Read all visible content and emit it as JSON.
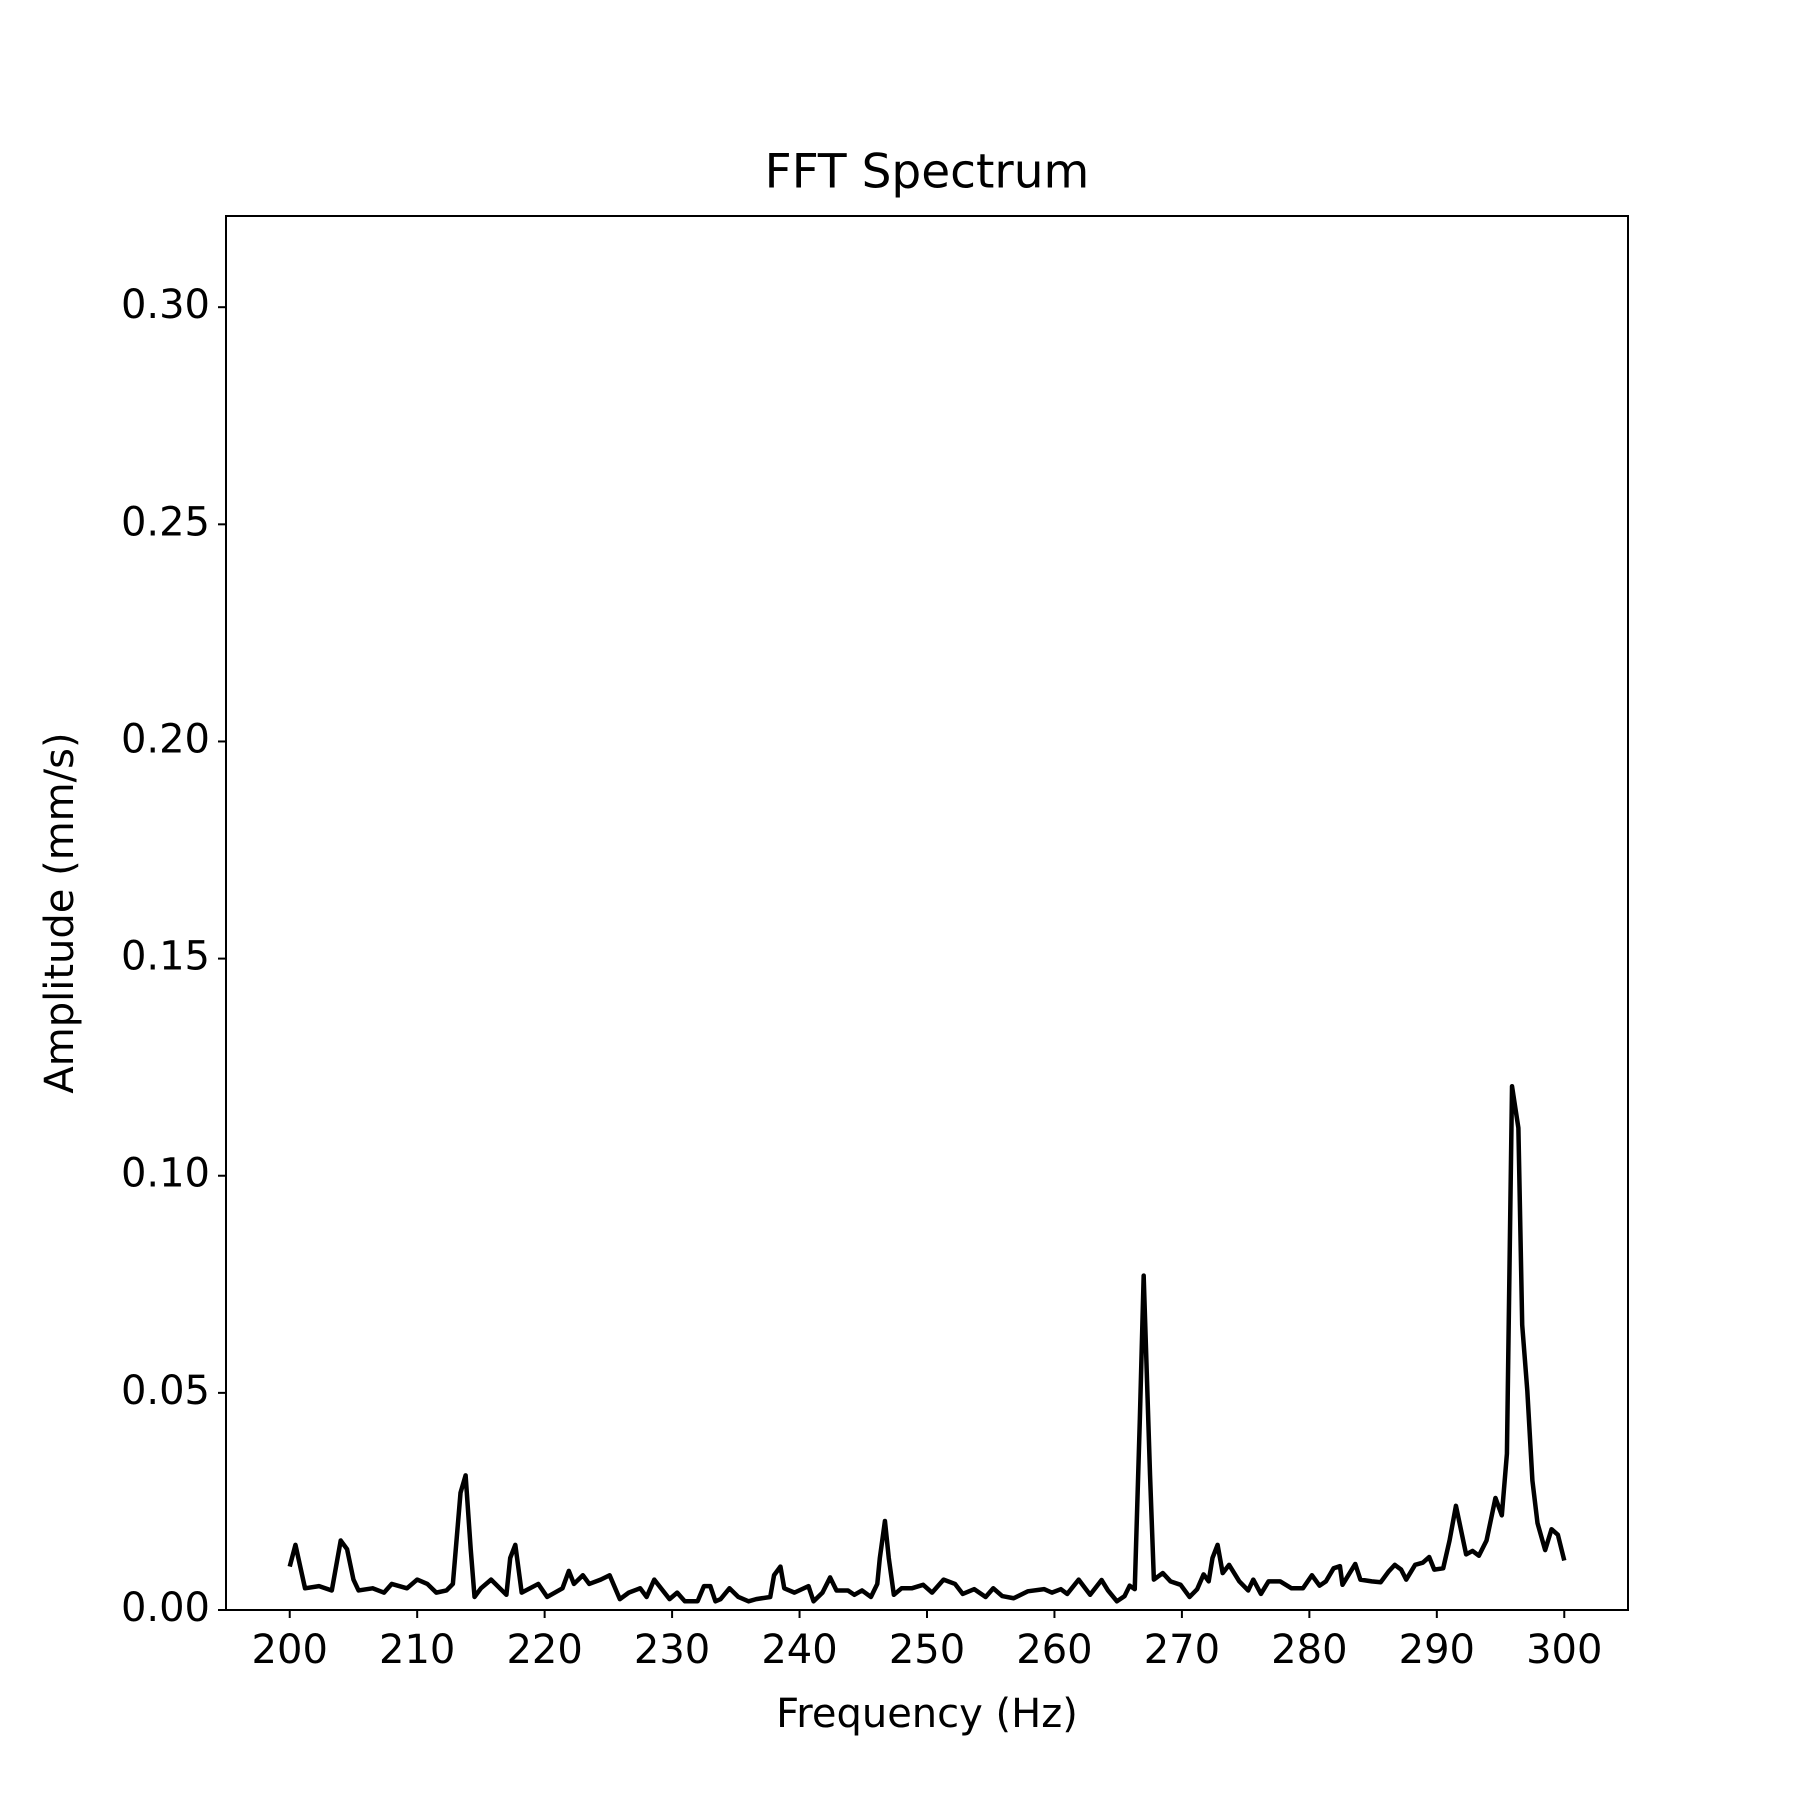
{
  "chart_data": {
    "type": "line",
    "title": "FFT Spectrum",
    "xlabel": "Frequency (Hz)",
    "ylabel": "Amplitude (mm/s)",
    "color": "#000000",
    "x": [
      200,
      200.45,
      201.2,
      202.3,
      203.3,
      204,
      204.5,
      205,
      205.4,
      206.5,
      207.4,
      208,
      209.2,
      210,
      210.8,
      211.5,
      212.3,
      212.8,
      213.4,
      213.8,
      214.2,
      214.5,
      215,
      215.8,
      217,
      217.3,
      217.7,
      218.2,
      219.5,
      220.2,
      221.4,
      221.9,
      222.3,
      223,
      223.5,
      224.4,
      225.1,
      225.9,
      226.6,
      227.5,
      228,
      228.6,
      229.8,
      230.4,
      231,
      232,
      232.5,
      233,
      233.4,
      233.8,
      234.5,
      235.2,
      236,
      236.6,
      237.7,
      238,
      238.5,
      238.8,
      239.6,
      240.7,
      241.1,
      241.8,
      242.4,
      242.9,
      243.8,
      244.3,
      244.9,
      245.6,
      246.1,
      246.3,
      246.7,
      247,
      247.4,
      248,
      248.8,
      249.7,
      250.4,
      251.3,
      252.2,
      252.8,
      253.7,
      254.6,
      255.2,
      255.9,
      256.8,
      257.9,
      259.2,
      259.8,
      260.5,
      261,
      261.9,
      262.8,
      263.7,
      264.2,
      264.9,
      265.5,
      265.9,
      266.3,
      266.7,
      267,
      267.5,
      267.8,
      268.5,
      269.1,
      269.9,
      270.6,
      271.2,
      271.7,
      272.1,
      272.4,
      272.8,
      273.2,
      273.7,
      274.5,
      275.2,
      275.6,
      276.2,
      276.8,
      277.7,
      278.6,
      279.5,
      280.2,
      280.8,
      281.3,
      281.9,
      282.4,
      282.6,
      283.6,
      284,
      284.9,
      285.6,
      286.2,
      286.7,
      287.2,
      287.6,
      288.3,
      288.9,
      289.4,
      289.8,
      290.5,
      291,
      291.5,
      292.3,
      292.8,
      293.3,
      293.9,
      294.6,
      295.1,
      295.5,
      295.9,
      296.4,
      296.7,
      297.1,
      297.5,
      297.9,
      298.5,
      299,
      299.5,
      300
    ],
    "values": [
      0.01,
      0.015,
      0.005,
      0.0055,
      0.0045,
      0.016,
      0.014,
      0.007,
      0.0045,
      0.005,
      0.004,
      0.006,
      0.005,
      0.007,
      0.006,
      0.004,
      0.0045,
      0.006,
      0.027,
      0.031,
      0.014,
      0.003,
      0.005,
      0.007,
      0.0035,
      0.012,
      0.015,
      0.004,
      0.006,
      0.003,
      0.005,
      0.009,
      0.006,
      0.008,
      0.006,
      0.007,
      0.008,
      0.0025,
      0.004,
      0.005,
      0.003,
      0.007,
      0.0025,
      0.004,
      0.002,
      0.002,
      0.0055,
      0.0055,
      0.002,
      0.0025,
      0.005,
      0.003,
      0.002,
      0.0025,
      0.003,
      0.008,
      0.01,
      0.005,
      0.004,
      0.0055,
      0.002,
      0.004,
      0.0075,
      0.0045,
      0.0045,
      0.0035,
      0.0045,
      0.003,
      0.006,
      0.012,
      0.0205,
      0.012,
      0.0035,
      0.005,
      0.005,
      0.0058,
      0.004,
      0.007,
      0.006,
      0.0037,
      0.0048,
      0.003,
      0.005,
      0.0032,
      0.0027,
      0.0043,
      0.0048,
      0.004,
      0.0048,
      0.0037,
      0.007,
      0.0035,
      0.0069,
      0.0045,
      0.002,
      0.0032,
      0.0056,
      0.0048,
      0.044,
      0.077,
      0.031,
      0.007,
      0.0085,
      0.0066,
      0.0058,
      0.003,
      0.0048,
      0.0082,
      0.0066,
      0.012,
      0.015,
      0.0085,
      0.0104,
      0.0066,
      0.0045,
      0.007,
      0.0037,
      0.0066,
      0.0066,
      0.005,
      0.005,
      0.008,
      0.0056,
      0.0066,
      0.0096,
      0.0101,
      0.0058,
      0.0106,
      0.007,
      0.0066,
      0.0064,
      0.0088,
      0.0104,
      0.0093,
      0.007,
      0.0104,
      0.0109,
      0.0122,
      0.0093,
      0.0096,
      0.016,
      0.024,
      0.0128,
      0.0136,
      0.0125,
      0.016,
      0.0258,
      0.0218,
      0.036,
      0.1206,
      0.111,
      0.0656,
      0.0505,
      0.0298,
      0.02,
      0.0138,
      0.0186,
      0.0173,
      0.0114
    ],
    "xlim": [
      195,
      305
    ],
    "xticks": [
      200,
      210,
      220,
      230,
      240,
      250,
      260,
      270,
      280,
      290,
      300
    ],
    "ylim": [
      0,
      0.321
    ],
    "yticks": [
      {
        "value": 0,
        "label": "0.00"
      },
      {
        "value": 0.05,
        "label": "0.05"
      },
      {
        "value": 0.1,
        "label": "0.10"
      },
      {
        "value": 0.15,
        "label": "0.15"
      },
      {
        "value": 0.2,
        "label": "0.20"
      },
      {
        "value": 0.25,
        "label": "0.25"
      },
      {
        "value": 0.3,
        "label": "0.30"
      }
    ],
    "grid": false
  }
}
